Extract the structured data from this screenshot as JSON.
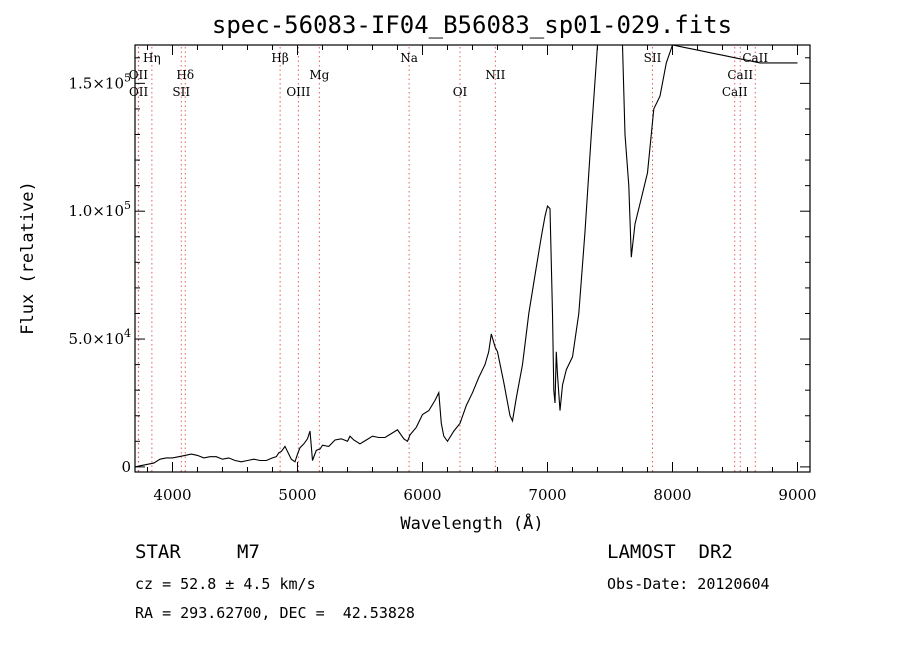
{
  "chart_data": {
    "type": "line",
    "title": "spec-56083-IF04_B56083_sp01-029.fits",
    "xlabel": "Wavelength (Å)",
    "ylabel": "Flux (relative)",
    "xlim": [
      3700,
      9100
    ],
    "ylim": [
      -2000,
      165000
    ],
    "x_ticks": [
      {
        "value": 4000,
        "label": "4000"
      },
      {
        "value": 5000,
        "label": "5000"
      },
      {
        "value": 6000,
        "label": "6000"
      },
      {
        "value": 7000,
        "label": "7000"
      },
      {
        "value": 8000,
        "label": "8000"
      },
      {
        "value": 9000,
        "label": "9000"
      }
    ],
    "y_ticks": [
      {
        "value": 0,
        "mantissa": "0",
        "exponent": ""
      },
      {
        "value": 50000,
        "mantissa": "5.0×10",
        "exponent": "4"
      },
      {
        "value": 100000,
        "mantissa": "1.0×10",
        "exponent": "5"
      },
      {
        "value": 150000,
        "mantissa": "1.5×10",
        "exponent": "5"
      }
    ],
    "line_markers": [
      {
        "label": "OII",
        "wavelength": 3727,
        "row": 1
      },
      {
        "label": "OII",
        "wavelength": 3729,
        "row": 2
      },
      {
        "label": "Hη",
        "wavelength": 3835,
        "row": 0
      },
      {
        "label": "Hδ",
        "wavelength": 4102,
        "row": 1
      },
      {
        "label": "SII",
        "wavelength": 4070,
        "row": 2
      },
      {
        "label": "Hβ",
        "wavelength": 4861,
        "row": 0
      },
      {
        "label": "OIII",
        "wavelength": 5007,
        "row": 2
      },
      {
        "label": "Mg",
        "wavelength": 5175,
        "row": 1
      },
      {
        "label": "Na",
        "wavelength": 5893,
        "row": 0
      },
      {
        "label": "OI",
        "wavelength": 6300,
        "row": 2
      },
      {
        "label": "NII",
        "wavelength": 6583,
        "row": 1
      },
      {
        "label": "SII",
        "wavelength": 7840,
        "row": 0
      },
      {
        "label": "CaII",
        "wavelength": 8662,
        "row": 0
      },
      {
        "label": "CaII",
        "wavelength": 8542,
        "row": 1
      },
      {
        "label": "CaII",
        "wavelength": 8498,
        "row": 2
      }
    ],
    "series": [
      {
        "x": [
          3700,
          3750,
          3800,
          3850,
          3900,
          3950,
          4000,
          4050,
          4100,
          4150,
          4200,
          4250,
          4300,
          4350,
          4400,
          4450,
          4500,
          4550,
          4600,
          4650,
          4700,
          4750,
          4800,
          4830,
          4850,
          4870,
          4900,
          4950,
          4980,
          5000,
          5020,
          5050,
          5080,
          5100,
          5120,
          5150,
          5180,
          5200,
          5250,
          5300,
          5350,
          5400,
          5420,
          5450,
          5500,
          5550,
          5600,
          5650,
          5700,
          5750,
          5800,
          5850,
          5880,
          5900,
          5950,
          6000,
          6050,
          6100,
          6130,
          6150,
          6170,
          6200,
          6250,
          6300,
          6350,
          6400,
          6450,
          6500,
          6530,
          6550,
          6580,
          6600,
          6650,
          6700,
          6720,
          6750,
          6800,
          6850,
          6900,
          6950,
          6980,
          7000,
          7020,
          7040,
          7050,
          7060,
          7070,
          7080,
          7100,
          7120,
          7150,
          7200,
          7250,
          7300,
          7350,
          7400,
          7450,
          7500,
          7550,
          7600,
          7620,
          7650,
          7670,
          7700,
          7750,
          7800,
          7850,
          7900,
          7950,
          8000,
          8100,
          8200,
          8300,
          8400,
          8500,
          8600,
          8700,
          8800,
          8900,
          9000
        ],
        "y": [
          0,
          500,
          1000,
          1500,
          3000,
          3500,
          3500,
          4000,
          4500,
          5000,
          4500,
          3500,
          4000,
          4000,
          3000,
          3500,
          2500,
          2000,
          2500,
          3000,
          2500,
          2500,
          3500,
          4000,
          5500,
          6000,
          8000,
          3000,
          2000,
          5000,
          7500,
          9000,
          11000,
          14000,
          2500,
          6500,
          7000,
          8500,
          8000,
          10500,
          11000,
          10000,
          12000,
          10500,
          9000,
          10500,
          12000,
          11500,
          11500,
          13000,
          14500,
          11000,
          10000,
          12500,
          15500,
          20500,
          22000,
          26000,
          29000,
          17000,
          12000,
          10000,
          14000,
          17000,
          24000,
          29000,
          35000,
          40000,
          45000,
          52000,
          47000,
          45000,
          33000,
          20000,
          18000,
          27000,
          40000,
          60000,
          75000,
          90000,
          98000,
          102000,
          101000,
          60000,
          30000,
          25000,
          45000,
          36000,
          22000,
          32000,
          38000,
          43000,
          60000,
          92000,
          130000,
          165000,
          165000,
          165000,
          165000,
          165000,
          130000,
          110000,
          82000,
          95000,
          105000,
          115000,
          140000,
          145000,
          158000,
          165000,
          164000,
          163000,
          162000,
          161000,
          160000,
          159000,
          158000,
          158000,
          158000,
          158000
        ]
      }
    ]
  },
  "info": {
    "object_class": "STAR",
    "subclass": "M7",
    "survey": "LAMOST  DR2",
    "cz": "cz = 52.8 ± 4.5 km/s",
    "obs_date": "Obs-Date: 20120604",
    "coords": "RA = 293.62700, DEC =  42.53828"
  }
}
